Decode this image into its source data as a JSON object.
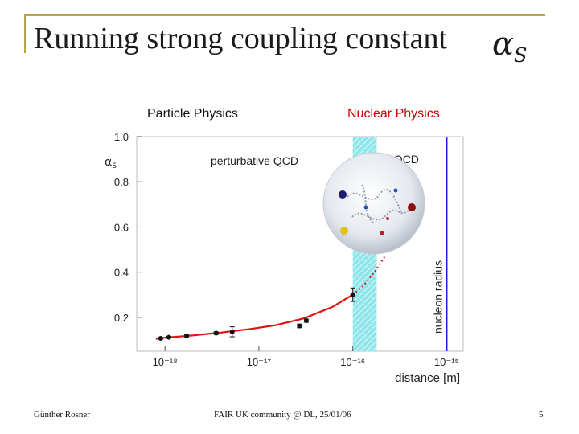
{
  "slide": {
    "title": "Running strong coupling constant",
    "symbol": "α",
    "symbol_sub": "S",
    "footer_left": "Günther Rosner",
    "footer_center": "FAIR UK community @ DL, 25/01/06",
    "page_number": "5"
  },
  "labels": {
    "particle_physics": "Particle Physics",
    "nuclear_physics": "Nuclear Physics"
  },
  "chart_data": {
    "type": "line",
    "xscale": "log",
    "xlabel": "distance [m]",
    "ylabel": "αS",
    "xlim": [
      5e-19,
      1.5e-15
    ],
    "ylim": [
      0.05,
      1.0
    ],
    "yticks": [
      0.2,
      0.4,
      0.6,
      0.8,
      1.0
    ],
    "ytick_labels": [
      "0.2",
      "0.4",
      "0.6",
      "0.8",
      "1.0"
    ],
    "xticks": [
      1e-18,
      1e-17,
      1e-16,
      1e-15
    ],
    "xtick_labels": [
      "10⁻¹⁸",
      "10⁻¹⁷",
      "10⁻¹⁶",
      "10⁻¹⁵"
    ],
    "regions": {
      "perturbative": "perturbative QCD",
      "strong": "strong QCD"
    },
    "band": {
      "x_from": 1e-16,
      "x_to": 1.8e-16
    },
    "nucleon_radius": {
      "x": 1e-15,
      "label": "nucleon radius"
    },
    "curve": {
      "x": [
        8e-19,
        1e-18,
        2e-18,
        4e-18,
        8e-18,
        1.5e-17,
        3e-17,
        6e-17,
        1e-16
      ],
      "y": [
        0.105,
        0.11,
        0.12,
        0.133,
        0.148,
        0.165,
        0.195,
        0.245,
        0.3
      ]
    },
    "curve_extrapolated": {
      "x": [
        1e-16,
        1.3e-16,
        1.7e-16,
        2.2e-16
      ],
      "y": [
        0.3,
        0.34,
        0.4,
        0.47
      ]
    },
    "points": {
      "x": [
        9e-19,
        1.1e-18,
        1.7e-18,
        3.5e-18,
        5.2e-18,
        2.7e-17,
        3.2e-17,
        1e-16
      ],
      "y": [
        0.107,
        0.112,
        0.118,
        0.13,
        0.136,
        0.162,
        0.185,
        0.3
      ],
      "yerr": [
        0.004,
        0.004,
        0.005,
        0.006,
        0.022,
        0.008,
        0.007,
        0.03
      ]
    }
  }
}
